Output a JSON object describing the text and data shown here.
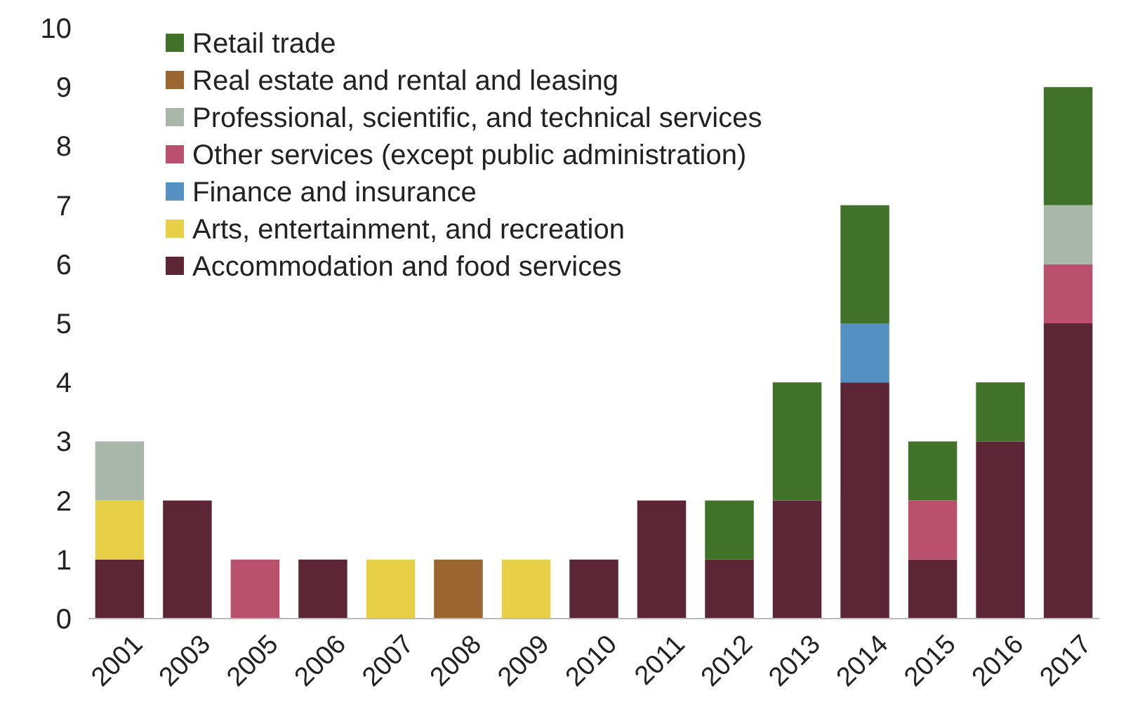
{
  "chart_data": {
    "type": "bar",
    "stacked": true,
    "categories": [
      "2001",
      "2003",
      "2005",
      "2006",
      "2007",
      "2008",
      "2009",
      "2010",
      "2011",
      "2012",
      "2013",
      "2014",
      "2015",
      "2016",
      "2017"
    ],
    "series": [
      {
        "name": "Accommodation and food services",
        "color": "#5c2637",
        "values": [
          1,
          2,
          null,
          1,
          null,
          null,
          null,
          1,
          2,
          1,
          2,
          4,
          1,
          3,
          5
        ]
      },
      {
        "name": "Arts, entertainment, and recreation",
        "color": "#e8cf48",
        "values": [
          1,
          null,
          null,
          null,
          1,
          null,
          1,
          null,
          null,
          null,
          null,
          null,
          null,
          null,
          null
        ]
      },
      {
        "name": "Finance and insurance",
        "color": "#5590c3",
        "values": [
          null,
          null,
          null,
          null,
          null,
          null,
          null,
          null,
          null,
          null,
          null,
          1,
          null,
          null,
          null
        ]
      },
      {
        "name": "Other services (except public administration)",
        "color": "#b8506e",
        "values": [
          null,
          null,
          1,
          null,
          null,
          null,
          null,
          null,
          null,
          null,
          null,
          null,
          1,
          null,
          1
        ]
      },
      {
        "name": "Professional, scientific, and technical services",
        "color": "#a9b7ab",
        "values": [
          1,
          null,
          null,
          null,
          null,
          null,
          null,
          null,
          null,
          null,
          null,
          null,
          null,
          null,
          1
        ]
      },
      {
        "name": "Real estate and rental and leasing",
        "color": "#9c6631",
        "values": [
          null,
          null,
          null,
          null,
          null,
          1,
          null,
          null,
          null,
          null,
          null,
          null,
          null,
          null,
          null
        ]
      },
      {
        "name": "Retail trade",
        "color": "#41722a",
        "values": [
          null,
          null,
          null,
          null,
          null,
          null,
          null,
          null,
          null,
          1,
          2,
          2,
          1,
          1,
          2
        ]
      }
    ],
    "ylim": [
      0,
      10
    ],
    "yticks": [
      0,
      1,
      2,
      3,
      4,
      5,
      6,
      7,
      8,
      9,
      10
    ],
    "grid": false,
    "legend": "top left"
  }
}
